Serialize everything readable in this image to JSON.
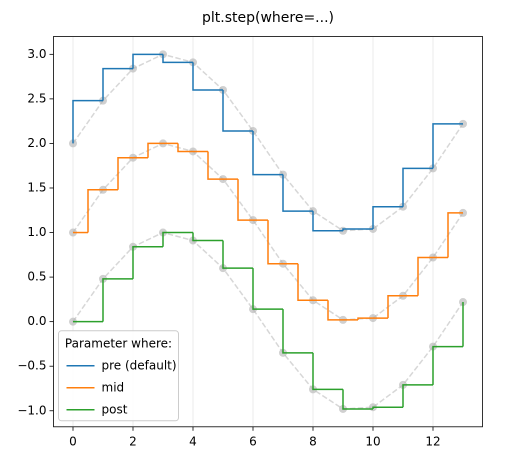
{
  "chart_data": {
    "type": "step",
    "title": "plt.step(where=...)",
    "x": [
      0,
      1,
      2,
      3,
      4,
      5,
      6,
      7,
      8,
      9,
      10,
      11,
      12,
      13
    ],
    "series": [
      {
        "name": "pre (default)",
        "where": "pre",
        "color": "#1f77b4",
        "values": [
          2.0,
          2.48,
          2.84,
          3.0,
          2.91,
          2.6,
          2.14,
          1.65,
          1.24,
          1.02,
          1.04,
          1.29,
          1.72,
          2.22
        ]
      },
      {
        "name": "mid",
        "where": "mid",
        "color": "#ff7f0e",
        "values": [
          1.0,
          1.48,
          1.84,
          2.0,
          1.91,
          1.6,
          1.14,
          0.65,
          0.24,
          0.02,
          0.04,
          0.29,
          0.72,
          1.22
        ]
      },
      {
        "name": "post",
        "where": "post",
        "color": "#2ca02c",
        "values": [
          0.0,
          0.48,
          0.84,
          1.0,
          0.91,
          0.6,
          0.14,
          -0.35,
          -0.76,
          -0.98,
          -0.96,
          -0.71,
          -0.28,
          0.22
        ]
      }
    ],
    "guide_color": "#b0b0b0",
    "legend_title": "Parameter where:",
    "legend": "lower left",
    "xlim": [
      -0.65,
      13.65
    ],
    "xticks": [
      0,
      2,
      4,
      6,
      8,
      10,
      12
    ],
    "ylim": [
      -1.18,
      3.2
    ],
    "yticks": [
      {
        "value": -1.0,
        "label": "−1.0"
      },
      {
        "value": -0.5,
        "label": "−0.5"
      },
      {
        "value": 0.0,
        "label": "0.0"
      },
      {
        "value": 0.5,
        "label": "0.5"
      },
      {
        "value": 1.0,
        "label": "1.0"
      },
      {
        "value": 1.5,
        "label": "1.5"
      },
      {
        "value": 2.0,
        "label": "2.0"
      },
      {
        "value": 2.5,
        "label": "2.5"
      },
      {
        "value": 3.0,
        "label": "3.0"
      }
    ],
    "grid": "x"
  }
}
